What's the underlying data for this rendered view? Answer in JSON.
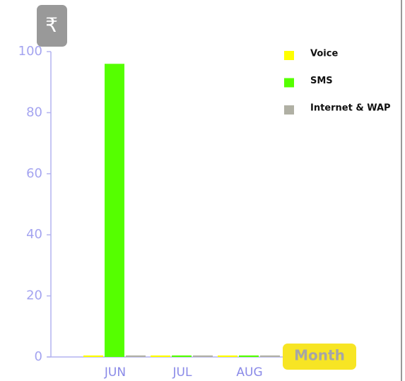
{
  "chart_data": {
    "type": "bar",
    "y_label": "₹",
    "x_label": "Month",
    "categories": [
      "JUN",
      "JUL",
      "AUG"
    ],
    "series": [
      {
        "name": "Voice",
        "color": "#ffff00",
        "values": [
          0.5,
          0.5,
          0.5
        ]
      },
      {
        "name": "SMS",
        "color": "#55ff00",
        "values": [
          96,
          0.5,
          0.5
        ]
      },
      {
        "name": "Internet & WAP",
        "color": "#b0b0a4",
        "values": [
          0.5,
          0.5,
          0.5
        ]
      }
    ],
    "ylim": [
      0,
      100
    ],
    "yticks": [
      0,
      20,
      40,
      60,
      80,
      100
    ],
    "legend": "upper right"
  }
}
